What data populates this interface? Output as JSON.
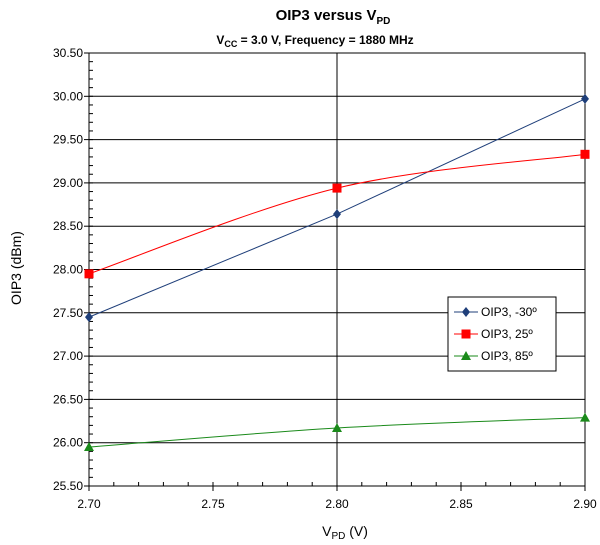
{
  "chart_data": {
    "type": "line",
    "title": {
      "main": "OIP3 versus V",
      "sub": "PD"
    },
    "subtitle": {
      "pre": "V",
      "sub": "CC",
      "post": " = 3.0 V, Frequency = 1880 MHz"
    },
    "xlabel": {
      "main": "V",
      "sub": "PD",
      "post": " (V)"
    },
    "ylabel": "OIP3 (dBm)",
    "xlim": [
      2.7,
      2.9
    ],
    "ylim": [
      25.5,
      30.5
    ],
    "x_ticks": [
      "2.70",
      "2.75",
      "2.80",
      "2.85",
      "2.90"
    ],
    "y_ticks": [
      "30.50",
      "30.00",
      "29.50",
      "29.00",
      "28.50",
      "28.00",
      "27.50",
      "27.00",
      "26.50",
      "26.00",
      "25.50"
    ],
    "x": [
      2.7,
      2.8,
      2.9
    ],
    "grid": true,
    "legend_position": "right",
    "series": [
      {
        "name": "OIP3, -30º",
        "values": [
          27.45,
          28.64,
          29.97
        ],
        "color": "#1f3f7a",
        "marker": "diamond",
        "smooth": false
      },
      {
        "name": "OIP3, 25º",
        "values": [
          27.95,
          28.94,
          29.33
        ],
        "color": "#ff0000",
        "marker": "square",
        "smooth": true
      },
      {
        "name": "OIP3, 85º",
        "values": [
          25.95,
          26.17,
          26.29
        ],
        "color": "#1a8a1a",
        "marker": "triangle",
        "smooth": true
      }
    ]
  }
}
